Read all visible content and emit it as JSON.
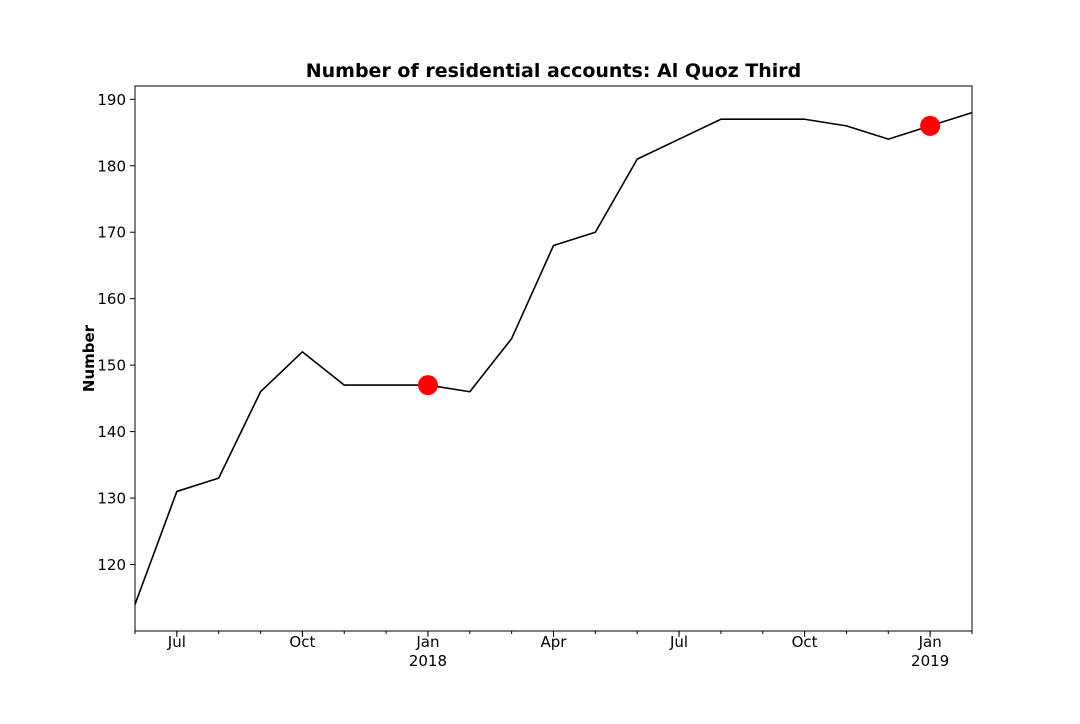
{
  "chart_data": {
    "type": "line",
    "title": "Number of residential accounts: Al Quoz Third",
    "xlabel": "",
    "ylabel": "Number",
    "x": [
      "2017-06",
      "2017-07",
      "2017-08",
      "2017-09",
      "2017-10",
      "2017-11",
      "2017-12",
      "2018-01",
      "2018-02",
      "2018-03",
      "2018-04",
      "2018-05",
      "2018-06",
      "2018-07",
      "2018-08",
      "2018-09",
      "2018-10",
      "2018-11",
      "2018-12",
      "2019-01",
      "2019-02"
    ],
    "series": [
      {
        "values": [
          114,
          131,
          133,
          146,
          152,
          147,
          147,
          147,
          146,
          154,
          168,
          170,
          181,
          184,
          187,
          187,
          187,
          186,
          184,
          186,
          188
        ],
        "color": "#000000"
      }
    ],
    "highlight_points": [
      {
        "x": "2018-01",
        "y": 147
      },
      {
        "x": "2019-01",
        "y": 186
      }
    ],
    "highlight_color": "#ff0000",
    "xlim": [
      "2017-06",
      "2019-02"
    ],
    "ylim": [
      110,
      192
    ],
    "yticks": [
      120,
      130,
      140,
      150,
      160,
      170,
      180,
      190
    ],
    "xticks": [
      {
        "x": "2017-07",
        "label": "Jul",
        "sublabel": ""
      },
      {
        "x": "2017-10",
        "label": "Oct",
        "sublabel": ""
      },
      {
        "x": "2018-01",
        "label": "Jan",
        "sublabel": "2018"
      },
      {
        "x": "2018-04",
        "label": "Apr",
        "sublabel": ""
      },
      {
        "x": "2018-07",
        "label": "Jul",
        "sublabel": ""
      },
      {
        "x": "2018-10",
        "label": "Oct",
        "sublabel": ""
      },
      {
        "x": "2019-01",
        "label": "Jan",
        "sublabel": "2019"
      }
    ],
    "grid": false,
    "legend": "none"
  }
}
